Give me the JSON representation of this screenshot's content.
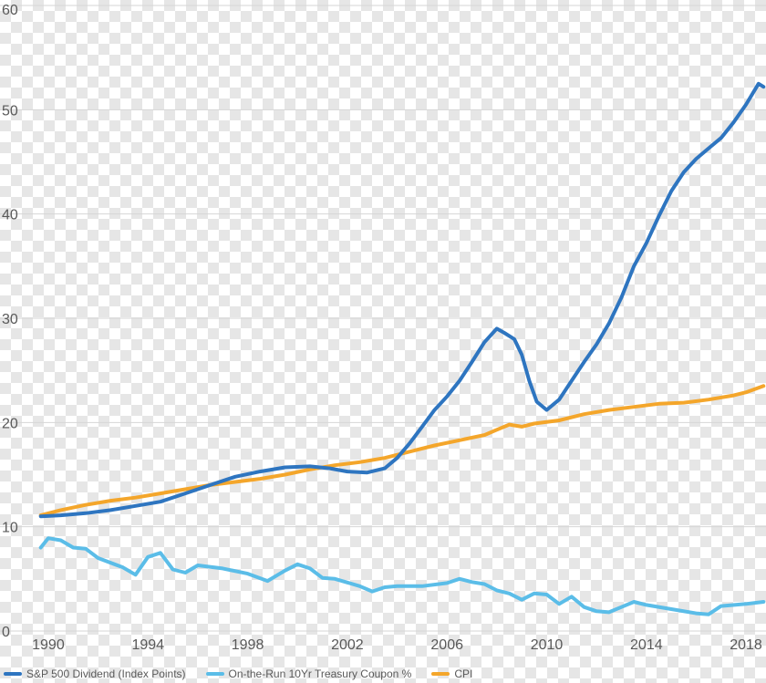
{
  "chart_data": {
    "type": "line",
    "title": "",
    "xlabel": "",
    "ylabel": "",
    "xlim": [
      1989.6,
      2018.8
    ],
    "ylim": [
      0,
      60
    ],
    "grid": true,
    "legend_position": "bottom-left",
    "x_ticks": [
      "1990",
      "1994",
      "1998",
      "2002",
      "2006",
      "2010",
      "2014",
      "2018"
    ],
    "y_ticks": [
      "0",
      "10",
      "20",
      "30",
      "40",
      "50",
      "60"
    ],
    "series": [
      {
        "name": "S&P 500 Dividend (Index Points)",
        "color": "#2e75c0",
        "x": [
          1989.7,
          1990.5,
          1991.5,
          1992.5,
          1993.5,
          1994.5,
          1995.5,
          1996.5,
          1997.5,
          1998.5,
          1999.5,
          2000.5,
          2001.3,
          2002.0,
          2002.8,
          2003.5,
          2004.0,
          2004.5,
          2005.0,
          2005.5,
          2006.0,
          2006.5,
          2007.0,
          2007.5,
          2008.0,
          2008.3,
          2008.7,
          2009.0,
          2009.3,
          2009.6,
          2010.0,
          2010.5,
          2011.0,
          2011.5,
          2012.0,
          2012.5,
          2013.0,
          2013.5,
          2014.0,
          2014.5,
          2015.0,
          2015.5,
          2016.0,
          2016.5,
          2017.0,
          2017.5,
          2018.0,
          2018.5,
          2018.7
        ],
        "values": [
          11.0,
          11.1,
          11.3,
          11.6,
          12.0,
          12.4,
          13.2,
          14.0,
          14.8,
          15.3,
          15.7,
          15.8,
          15.6,
          15.3,
          15.2,
          15.6,
          16.6,
          18.0,
          19.6,
          21.2,
          22.5,
          24.0,
          25.8,
          27.7,
          29.0,
          28.6,
          28.0,
          26.5,
          24.0,
          22.0,
          21.2,
          22.2,
          24.0,
          25.8,
          27.5,
          29.5,
          32.0,
          35.0,
          37.2,
          39.8,
          42.2,
          44.0,
          45.3,
          46.3,
          47.3,
          48.8,
          50.5,
          52.5,
          52.2
        ]
      },
      {
        "name": "On-the-Run 10Yr Treasury Coupon %",
        "color": "#5bbde8",
        "x": [
          1989.7,
          1990.0,
          1990.5,
          1991.0,
          1991.5,
          1992.0,
          1993.0,
          1993.5,
          1994.0,
          1994.5,
          1995.0,
          1995.5,
          1996.0,
          1997.0,
          1998.0,
          1998.8,
          1999.5,
          2000.0,
          2000.5,
          2001.0,
          2001.5,
          2002.5,
          2003.0,
          2003.5,
          2004.0,
          2005.0,
          2006.0,
          2006.5,
          2007.0,
          2007.5,
          2008.0,
          2008.5,
          2009.0,
          2009.5,
          2010.0,
          2010.5,
          2011.0,
          2011.5,
          2012.0,
          2012.5,
          2013.0,
          2013.5,
          2014.0,
          2015.0,
          2016.0,
          2016.5,
          2017.0,
          2018.0,
          2018.7
        ],
        "values": [
          8.0,
          8.9,
          8.7,
          8.0,
          7.9,
          7.0,
          6.1,
          5.4,
          7.1,
          7.5,
          5.9,
          5.6,
          6.3,
          6.0,
          5.5,
          4.8,
          5.8,
          6.4,
          6.0,
          5.1,
          5.0,
          4.3,
          3.8,
          4.2,
          4.3,
          4.3,
          4.6,
          5.0,
          4.7,
          4.5,
          3.9,
          3.6,
          3.0,
          3.6,
          3.5,
          2.6,
          3.3,
          2.3,
          1.9,
          1.8,
          2.3,
          2.8,
          2.5,
          2.1,
          1.7,
          1.6,
          2.4,
          2.6,
          2.8
        ]
      },
      {
        "name": "CPI",
        "color": "#f4a62b",
        "x": [
          1989.7,
          1990.5,
          1991.5,
          1992.5,
          1993.5,
          1994.5,
          1995.5,
          1996.5,
          1997.5,
          1998.5,
          1999.5,
          2000.5,
          2001.5,
          2002.5,
          2003.5,
          2004.5,
          2005.5,
          2006.5,
          2007.5,
          2008.0,
          2008.5,
          2009.0,
          2009.5,
          2010.5,
          2011.5,
          2012.5,
          2013.5,
          2014.5,
          2015.5,
          2016.5,
          2017.5,
          2018.0,
          2018.7
        ],
        "values": [
          11.1,
          11.6,
          12.1,
          12.5,
          12.8,
          13.2,
          13.6,
          14.0,
          14.3,
          14.6,
          15.0,
          15.5,
          15.9,
          16.2,
          16.6,
          17.2,
          17.8,
          18.3,
          18.8,
          19.3,
          19.8,
          19.6,
          19.9,
          20.2,
          20.8,
          21.2,
          21.5,
          21.8,
          21.9,
          22.2,
          22.6,
          22.9,
          23.5
        ]
      }
    ]
  }
}
